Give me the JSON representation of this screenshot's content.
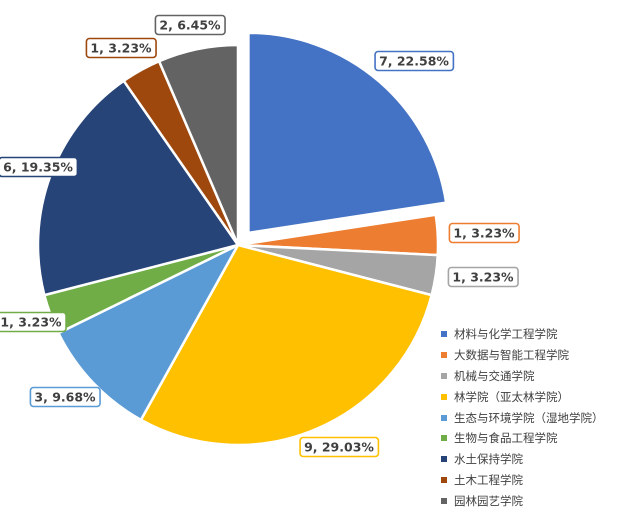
{
  "chart_data": {
    "type": "pie",
    "title": "",
    "legend_position": "bottom-right",
    "slices": [
      {
        "name": "材料与化学工程学院",
        "value": 7,
        "percent": "22.58%",
        "label": "7, 22.58%",
        "color": "#4472C4",
        "exploded": true
      },
      {
        "name": "大数据与智能工程学院",
        "value": 1,
        "percent": "3.23%",
        "label": "1, 3.23%",
        "color": "#ED7D31",
        "exploded": false
      },
      {
        "name": "机械与交通学院",
        "value": 1,
        "percent": "3.23%",
        "label": "1, 3.23%",
        "color": "#A5A5A5",
        "exploded": false
      },
      {
        "name": "林学院（亚太林学院）",
        "value": 9,
        "percent": "29.03%",
        "label": "9, 29.03%",
        "color": "#FFC000",
        "exploded": false
      },
      {
        "name": "生态与环境学院（湿地学院）",
        "value": 3,
        "percent": "9.68%",
        "label": "3, 9.68%",
        "color": "#5B9BD5",
        "exploded": false
      },
      {
        "name": "生物与食品工程学院",
        "value": 1,
        "percent": "3.23%",
        "label": "1, 3.23%",
        "color": "#70AD47",
        "exploded": false
      },
      {
        "name": "水土保持学院",
        "value": 6,
        "percent": "19.35%",
        "label": "6, 19.35%",
        "color": "#264478",
        "exploded": false
      },
      {
        "name": "土木工程学院",
        "value": 1,
        "percent": "3.23%",
        "label": "1, 3.23%",
        "color": "#9E480E",
        "exploded": false
      },
      {
        "name": "园林园艺学院",
        "value": 2,
        "percent": "6.45%",
        "label": "2, 6.45%",
        "color": "#636363",
        "exploded": false
      }
    ]
  }
}
